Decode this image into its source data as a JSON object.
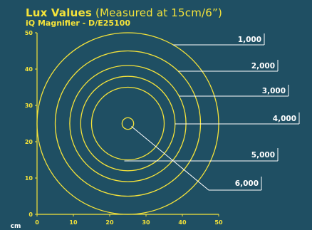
{
  "header": {
    "title_bold": "Lux Values",
    "title_rest": "(Measured at 15cm/6”)",
    "model": "iQ Magnifier - D/E25100"
  },
  "colors": {
    "background": "#1f4f63",
    "accent": "#f5e33a",
    "label_text": "#ffffff"
  },
  "axes": {
    "unit": "cm",
    "x_range": [
      0,
      50
    ],
    "y_range": [
      0,
      50
    ],
    "x_ticks": [
      "0",
      "10",
      "20",
      "30",
      "40",
      "50"
    ],
    "y_ticks": [
      "0",
      "10",
      "20",
      "30",
      "40",
      "50"
    ]
  },
  "diagram": {
    "center": [
      25,
      25
    ],
    "rings": [
      {
        "lux": "1,000",
        "radius_cm": 25
      },
      {
        "lux": "2,000",
        "radius_cm": 20
      },
      {
        "lux": "3,000",
        "radius_cm": 16
      },
      {
        "lux": "4,000",
        "radius_cm": 13
      },
      {
        "lux": "5,000",
        "radius_cm": 10
      },
      {
        "lux": "6,000",
        "radius_cm": 1.6
      }
    ]
  }
}
